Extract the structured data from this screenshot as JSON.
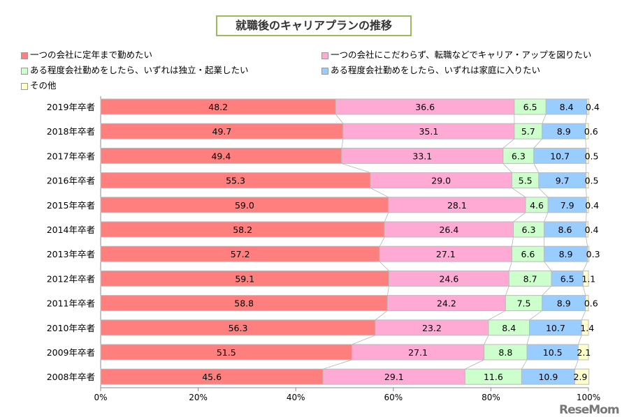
{
  "chart_data": {
    "type": "bar",
    "orientation": "horizontal-stacked-100",
    "title": "就職後のキャリアプランの推移",
    "categories": [
      "2019年卒者",
      "2018年卒者",
      "2017年卒者",
      "2016年卒者",
      "2015年卒者",
      "2014年卒者",
      "2013年卒者",
      "2012年卒者",
      "2011年卒者",
      "2010年卒者",
      "2009年卒者",
      "2008年卒者"
    ],
    "series": [
      {
        "name": "一つの会社に定年まで勤めたい",
        "color": "#ff7f7f",
        "values": [
          48.2,
          49.7,
          49.4,
          55.3,
          59.0,
          58.2,
          57.2,
          59.1,
          58.8,
          56.3,
          51.5,
          45.6
        ]
      },
      {
        "name": "一つの会社にこだわらず、転職などでキャリア・アップを図りたい",
        "color": "#ffaad4",
        "values": [
          36.6,
          35.1,
          33.1,
          29.0,
          28.1,
          26.4,
          27.1,
          24.6,
          24.2,
          23.2,
          27.1,
          29.1
        ]
      },
      {
        "name": "ある程度会社勤めをしたら、いずれは独立・起業したい",
        "color": "#ccffcc",
        "values": [
          6.5,
          5.7,
          6.3,
          5.5,
          4.6,
          6.3,
          6.6,
          8.7,
          7.5,
          8.4,
          8.8,
          11.6
        ]
      },
      {
        "name": "ある程度会社勤めをしたら、いずれは家庭に入りたい",
        "color": "#99ccff",
        "values": [
          8.4,
          8.9,
          10.7,
          9.7,
          7.9,
          8.6,
          8.9,
          6.5,
          8.9,
          10.7,
          10.5,
          10.9
        ]
      },
      {
        "name": "その他",
        "color": "#ffffcc",
        "values": [
          0.4,
          0.6,
          0.5,
          0.5,
          0.4,
          0.4,
          0.3,
          1.1,
          0.6,
          1.4,
          2.1,
          2.9
        ]
      }
    ],
    "xlim": [
      0,
      100
    ],
    "xticks": [
      "0%",
      "20%",
      "40%",
      "60%",
      "80%",
      "100%"
    ],
    "legend_position": "top"
  },
  "watermark": "ReseMom"
}
